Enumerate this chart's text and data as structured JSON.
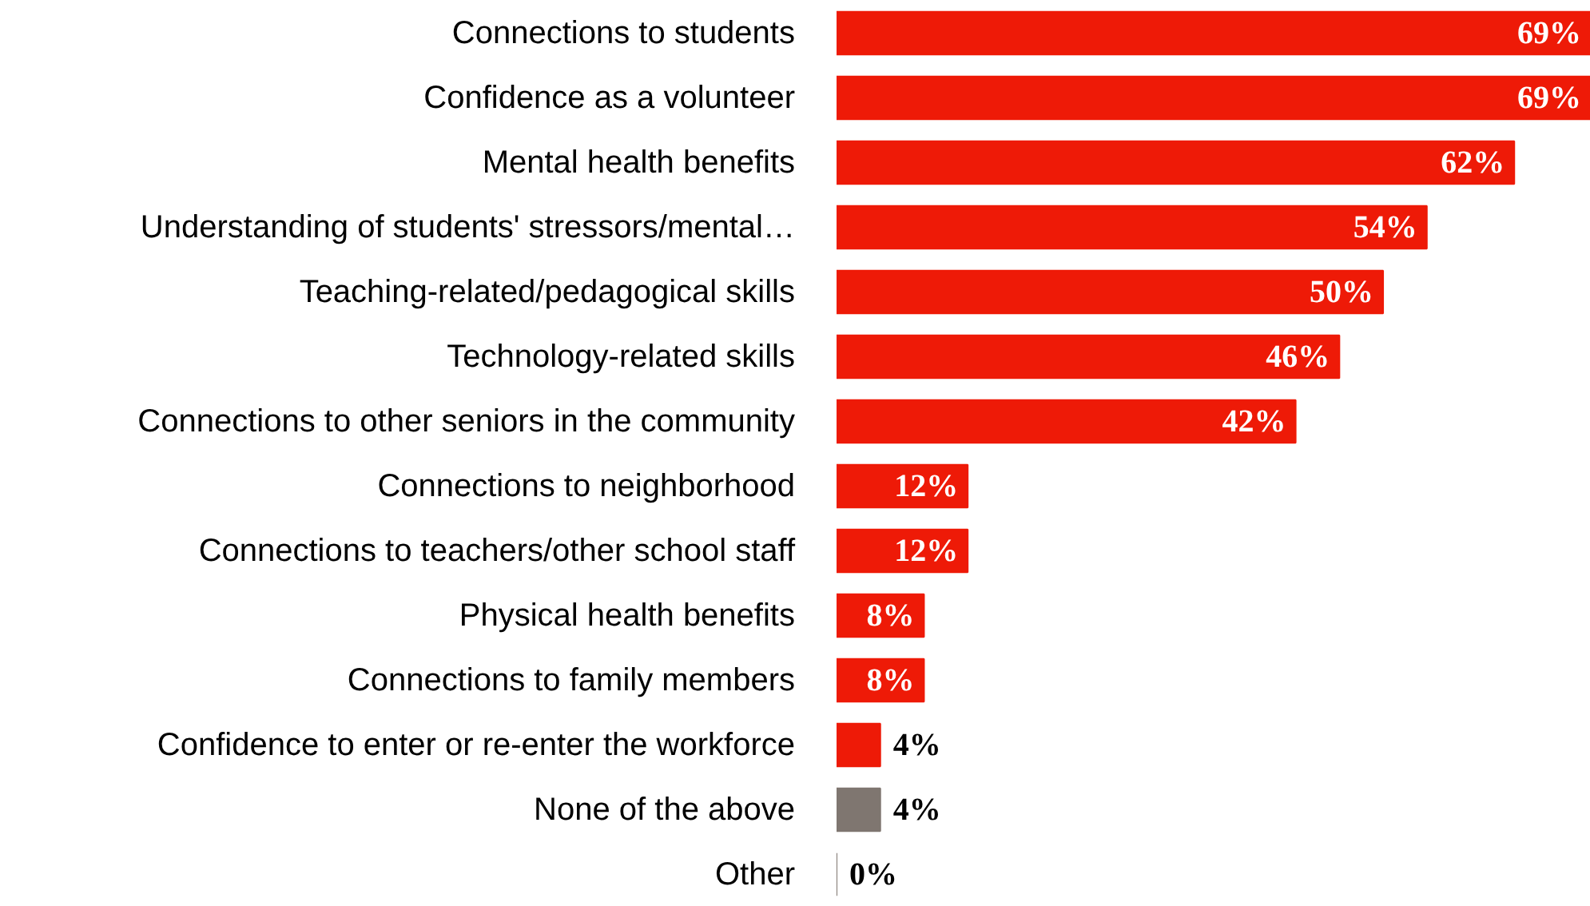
{
  "chart_data": {
    "type": "bar",
    "orientation": "horizontal",
    "data_labels": true,
    "categories": [
      "Connections to students",
      "Confidence as a volunteer",
      "Mental health benefits",
      "Understanding of students' stressors/mental…",
      "Teaching-related/pedagogical skills",
      "Technology-related skills",
      "Connections to other seniors in the community",
      "Connections to neighborhood",
      "Connections to teachers/other school staff",
      "Physical health benefits",
      "Connections to family members",
      "Confidence to enter or re-enter the workforce",
      "None of the above",
      "Other"
    ],
    "values": [
      69,
      69,
      62,
      54,
      50,
      46,
      42,
      12,
      12,
      8,
      8,
      4,
      4,
      0
    ],
    "value_labels": [
      "69%",
      "69%",
      "62%",
      "54%",
      "50%",
      "46%",
      "42%",
      "12%",
      "12%",
      "8%",
      "8%",
      "4%",
      "4%",
      "0%"
    ],
    "colors": [
      "#ee1a07",
      "#ee1a07",
      "#ee1a07",
      "#ee1a07",
      "#ee1a07",
      "#ee1a07",
      "#ee1a07",
      "#ee1a07",
      "#ee1a07",
      "#ee1a07",
      "#ee1a07",
      "#ee1a07",
      "#7f7670",
      "#7f7670"
    ]
  }
}
